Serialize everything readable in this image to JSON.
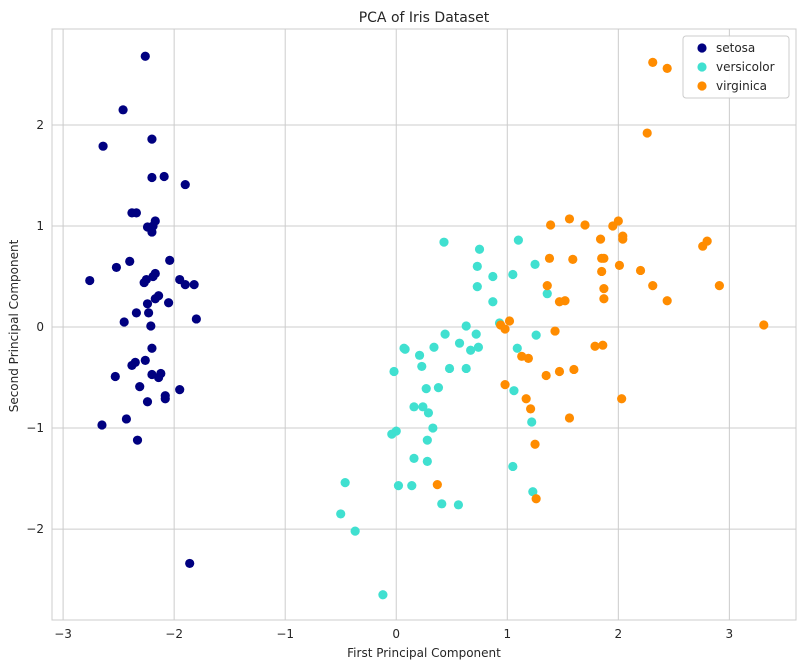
{
  "chart_data": {
    "type": "scatter",
    "title": "PCA of Iris Dataset",
    "xlabel": "First Principal Component",
    "ylabel": "Second Principal Component",
    "xlim": [
      -3.1,
      3.6
    ],
    "ylim": [
      -2.9,
      2.95
    ],
    "xticks": [
      -3,
      -2,
      -1,
      0,
      1,
      2,
      3
    ],
    "yticks": [
      -2,
      -1,
      0,
      1,
      2
    ],
    "xtick_labels": [
      "−3",
      "−2",
      "−1",
      "0",
      "1",
      "2",
      "3"
    ],
    "ytick_labels": [
      "−2",
      "−1",
      "0",
      "1",
      "2"
    ],
    "grid": true,
    "legend_position": "top-right",
    "series": [
      {
        "name": "setosa",
        "color": "#000080",
        "points": [
          [
            -2.26,
            2.68
          ],
          [
            -2.46,
            2.15
          ],
          [
            -2.2,
            1.86
          ],
          [
            -2.64,
            1.79
          ],
          [
            -2.2,
            1.48
          ],
          [
            -2.09,
            1.49
          ],
          [
            -1.9,
            1.41
          ],
          [
            -2.38,
            1.13
          ],
          [
            -2.34,
            1.13
          ],
          [
            -2.17,
            1.05
          ],
          [
            -2.19,
            1.0
          ],
          [
            -2.24,
            0.99
          ],
          [
            -2.2,
            0.94
          ],
          [
            -2.4,
            0.65
          ],
          [
            -2.04,
            0.66
          ],
          [
            -2.52,
            0.59
          ],
          [
            -2.17,
            0.53
          ],
          [
            -2.19,
            0.5
          ],
          [
            -2.25,
            0.47
          ],
          [
            -2.27,
            0.44
          ],
          [
            -2.76,
            0.46
          ],
          [
            -1.95,
            0.47
          ],
          [
            -1.9,
            0.42
          ],
          [
            -1.82,
            0.42
          ],
          [
            -2.14,
            0.31
          ],
          [
            -2.17,
            0.28
          ],
          [
            -2.24,
            0.23
          ],
          [
            -2.05,
            0.24
          ],
          [
            -2.34,
            0.14
          ],
          [
            -2.23,
            0.14
          ],
          [
            -1.8,
            0.08
          ],
          [
            -2.45,
            0.05
          ],
          [
            -2.21,
            0.01
          ],
          [
            -2.2,
            -0.21
          ],
          [
            -2.26,
            -0.33
          ],
          [
            -2.35,
            -0.35
          ],
          [
            -2.38,
            -0.38
          ],
          [
            -2.12,
            -0.46
          ],
          [
            -2.14,
            -0.5
          ],
          [
            -2.2,
            -0.47
          ],
          [
            -2.53,
            -0.49
          ],
          [
            -2.31,
            -0.59
          ],
          [
            -1.95,
            -0.62
          ],
          [
            -2.08,
            -0.68
          ],
          [
            -2.08,
            -0.71
          ],
          [
            -2.24,
            -0.74
          ],
          [
            -2.43,
            -0.91
          ],
          [
            -2.65,
            -0.97
          ],
          [
            -2.33,
            -1.12
          ],
          [
            -1.86,
            -2.34
          ]
        ]
      },
      {
        "name": "versicolor",
        "color": "#40e0d0",
        "points": [
          [
            1.1,
            0.86
          ],
          [
            0.43,
            0.84
          ],
          [
            0.75,
            0.77
          ],
          [
            1.25,
            0.62
          ],
          [
            0.73,
            0.6
          ],
          [
            1.05,
            0.52
          ],
          [
            0.87,
            0.5
          ],
          [
            0.73,
            0.4
          ],
          [
            1.36,
            0.33
          ],
          [
            0.87,
            0.25
          ],
          [
            0.93,
            0.04
          ],
          [
            0.63,
            0.01
          ],
          [
            0.44,
            -0.07
          ],
          [
            0.72,
            -0.07
          ],
          [
            1.26,
            -0.08
          ],
          [
            0.57,
            -0.16
          ],
          [
            0.34,
            -0.2
          ],
          [
            0.07,
            -0.21
          ],
          [
            0.08,
            -0.22
          ],
          [
            0.74,
            -0.2
          ],
          [
            0.67,
            -0.23
          ],
          [
            1.09,
            -0.21
          ],
          [
            0.21,
            -0.28
          ],
          [
            0.23,
            -0.39
          ],
          [
            -0.02,
            -0.44
          ],
          [
            0.48,
            -0.41
          ],
          [
            0.63,
            -0.41
          ],
          [
            0.38,
            -0.6
          ],
          [
            0.27,
            -0.61
          ],
          [
            1.06,
            -0.63
          ],
          [
            0.16,
            -0.79
          ],
          [
            0.24,
            -0.79
          ],
          [
            0.29,
            -0.85
          ],
          [
            1.22,
            -0.94
          ],
          [
            0.33,
            -1.0
          ],
          [
            -0.04,
            -1.06
          ],
          [
            0.0,
            -1.03
          ],
          [
            0.28,
            -1.12
          ],
          [
            0.16,
            -1.3
          ],
          [
            0.28,
            -1.33
          ],
          [
            1.05,
            -1.38
          ],
          [
            0.02,
            -1.57
          ],
          [
            0.14,
            -1.57
          ],
          [
            1.23,
            -1.63
          ],
          [
            0.41,
            -1.75
          ],
          [
            0.56,
            -1.76
          ],
          [
            -0.46,
            -1.54
          ],
          [
            -0.5,
            -1.85
          ],
          [
            -0.37,
            -2.02
          ],
          [
            -0.12,
            -2.65
          ]
        ]
      },
      {
        "name": "virginica",
        "color": "#ff8c00",
        "points": [
          [
            2.31,
            2.62
          ],
          [
            2.44,
            2.56
          ],
          [
            2.26,
            1.92
          ],
          [
            1.56,
            1.07
          ],
          [
            1.7,
            1.01
          ],
          [
            1.39,
            1.01
          ],
          [
            1.95,
            1.0
          ],
          [
            2.0,
            1.05
          ],
          [
            2.04,
            0.9
          ],
          [
            2.04,
            0.87
          ],
          [
            1.84,
            0.87
          ],
          [
            2.8,
            0.85
          ],
          [
            2.76,
            0.8
          ],
          [
            1.87,
            0.68
          ],
          [
            1.85,
            0.68
          ],
          [
            1.38,
            0.68
          ],
          [
            1.59,
            0.67
          ],
          [
            2.01,
            0.61
          ],
          [
            1.85,
            0.55
          ],
          [
            2.2,
            0.56
          ],
          [
            1.36,
            0.41
          ],
          [
            1.87,
            0.38
          ],
          [
            2.31,
            0.41
          ],
          [
            2.91,
            0.41
          ],
          [
            1.87,
            0.28
          ],
          [
            1.52,
            0.26
          ],
          [
            1.47,
            0.25
          ],
          [
            2.44,
            0.26
          ],
          [
            1.02,
            0.06
          ],
          [
            3.31,
            0.02
          ],
          [
            0.94,
            0.02
          ],
          [
            0.98,
            -0.02
          ],
          [
            1.43,
            -0.04
          ],
          [
            1.79,
            -0.19
          ],
          [
            1.86,
            -0.18
          ],
          [
            1.13,
            -0.29
          ],
          [
            1.19,
            -0.31
          ],
          [
            1.6,
            -0.42
          ],
          [
            1.47,
            -0.44
          ],
          [
            1.35,
            -0.48
          ],
          [
            0.98,
            -0.57
          ],
          [
            1.17,
            -0.71
          ],
          [
            2.03,
            -0.71
          ],
          [
            1.21,
            -0.81
          ],
          [
            1.56,
            -0.9
          ],
          [
            1.25,
            -1.16
          ],
          [
            0.37,
            -1.56
          ],
          [
            1.26,
            -1.7
          ]
        ]
      }
    ]
  }
}
